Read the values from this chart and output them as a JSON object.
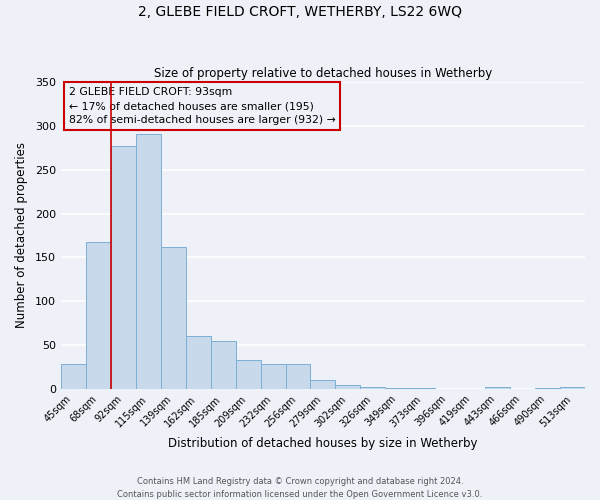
{
  "title": "2, GLEBE FIELD CROFT, WETHERBY, LS22 6WQ",
  "subtitle": "Size of property relative to detached houses in Wetherby",
  "xlabel": "Distribution of detached houses by size in Wetherby",
  "ylabel": "Number of detached properties",
  "bar_color": "#c9d9ec",
  "bar_edge_color": "#7aafd4",
  "background_color": "#eef2f8",
  "grid_color": "#ffffff",
  "categories": [
    "45sqm",
    "68sqm",
    "92sqm",
    "115sqm",
    "139sqm",
    "162sqm",
    "185sqm",
    "209sqm",
    "232sqm",
    "256sqm",
    "279sqm",
    "302sqm",
    "326sqm",
    "349sqm",
    "373sqm",
    "396sqm",
    "419sqm",
    "443sqm",
    "466sqm",
    "490sqm",
    "513sqm"
  ],
  "bar_heights": [
    28,
    168,
    277,
    291,
    162,
    60,
    55,
    33,
    28,
    28,
    10,
    5,
    2,
    1,
    1,
    0,
    0,
    2,
    0,
    1,
    2
  ],
  "ylim": [
    0,
    350
  ],
  "yticks": [
    0,
    50,
    100,
    150,
    200,
    250,
    300,
    350
  ],
  "vline_index": 2,
  "vline_color": "#cc0000",
  "box_edge_color": "#cc0000",
  "marker_label": "2 GLEBE FIELD CROFT: 93sqm",
  "annotation_line1": "← 17% of detached houses are smaller (195)",
  "annotation_line2": "82% of semi-detached houses are larger (932) →",
  "footer_line1": "Contains HM Land Registry data © Crown copyright and database right 2024.",
  "footer_line2": "Contains public sector information licensed under the Open Government Licence v3.0.",
  "figsize": [
    6.0,
    5.0
  ],
  "dpi": 100
}
